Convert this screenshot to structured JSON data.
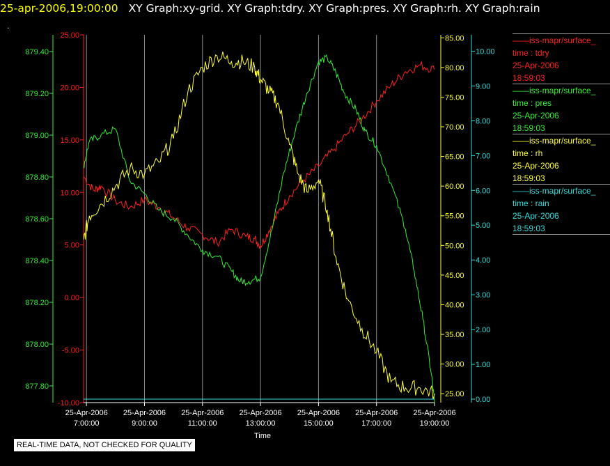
{
  "header": {
    "datetime": "25-apr-2006,19:00:00",
    "graphs": "XY Graph:xy-grid.  XY Graph:tdry.  XY Graph:pres.  XY Graph:rh.  XY Graph:rain"
  },
  "marker": ".",
  "legend": [
    {
      "name": "iss-mapr/surface_",
      "line2": "time : tdry",
      "date": "25-Apr-2006",
      "time": "18:59:03",
      "color": "#ff2020"
    },
    {
      "name": "iss-mapr/surface_",
      "line2": "time : pres",
      "date": "25-Apr-2006",
      "time": "18:59:03",
      "color": "#33ee33"
    },
    {
      "name": "iss-mapr/surface_",
      "line2": "time : rh",
      "date": "25-Apr-2006",
      "time": "18:59:03",
      "color": "#ffff33"
    },
    {
      "name": "iss-mapr/surface_",
      "line2": "time : rain",
      "date": "25-Apr-2006",
      "time": "18:59:03",
      "color": "#33dddd"
    }
  ],
  "quality_notice": "REAL-TIME DATA, NOT CHECKED FOR QUALITY",
  "chart_data": {
    "type": "line",
    "xlabel": "Time",
    "x_ticks": [
      {
        "date": "25-Apr-2006",
        "time": "7:00:00",
        "hour": 7
      },
      {
        "date": "25-Apr-2006",
        "time": "9:00:00",
        "hour": 9
      },
      {
        "date": "25-Apr-2006",
        "time": "11:00:00",
        "hour": 11
      },
      {
        "date": "25-Apr-2006",
        "time": "13:00:00",
        "hour": 13
      },
      {
        "date": "25-Apr-2006",
        "time": "15:00:00",
        "hour": 15
      },
      {
        "date": "25-Apr-2006",
        "time": "17:00:00",
        "hour": 17
      },
      {
        "date": "25-Apr-2006",
        "time": "19:00:00",
        "hour": 19
      }
    ],
    "xlim": [
      6.9,
      19.0
    ],
    "grid": true,
    "axes": [
      {
        "id": "pres",
        "color": "#33ee33",
        "ylim": [
          877.72,
          879.48
        ],
        "ticks": [
          "877.80",
          "878.00",
          "878.20",
          "878.40",
          "878.60",
          "878.80",
          "879.00",
          "879.20",
          "879.40"
        ]
      },
      {
        "id": "tdry",
        "color": "#ff2020",
        "ylim": [
          -10,
          25
        ],
        "ticks": [
          "-10.00",
          "-5.00",
          "0.00",
          "5.00",
          "10.00",
          "15.00",
          "20.00",
          "25.00"
        ]
      },
      {
        "id": "rh",
        "color": "#ffff33",
        "ylim": [
          23.5,
          85.5
        ],
        "ticks": [
          "25.00",
          "30.00",
          "35.00",
          "40.00",
          "45.00",
          "50.00",
          "55.00",
          "60.00",
          "65.00",
          "70.00",
          "75.00",
          "80.00",
          "85.00"
        ]
      },
      {
        "id": "rain",
        "color": "#33dddd",
        "ylim": [
          -0.1,
          10.47
        ],
        "ticks": [
          "0.00",
          "1.00",
          "2.00",
          "3.00",
          "4.00",
          "5.00",
          "6.00",
          "7.00",
          "8.00",
          "9.00",
          "10.00"
        ]
      }
    ],
    "series": [
      {
        "axis": "tdry",
        "color": "#ff2020",
        "x": [
          6.9,
          7.25,
          7.5,
          8.0,
          8.5,
          9.0,
          9.5,
          10.0,
          10.5,
          11.0,
          11.5,
          12.0,
          12.5,
          12.8,
          13.0,
          13.3,
          13.6,
          14.0,
          14.5,
          15.0,
          15.5,
          16.0,
          16.5,
          17.0,
          17.5,
          18.0,
          18.5,
          19.0
        ],
        "y": [
          11.5,
          10.2,
          10.6,
          9.2,
          8.6,
          9.3,
          8.6,
          7.6,
          6.6,
          6.0,
          5.2,
          6.5,
          5.8,
          5.6,
          4.9,
          6.4,
          8.0,
          9.7,
          11.2,
          12.5,
          14.0,
          15.6,
          17.0,
          18.7,
          20.2,
          21.5,
          22.1,
          21.7
        ]
      },
      {
        "axis": "pres",
        "color": "#33ee33",
        "x": [
          6.9,
          7.1,
          7.5,
          8.0,
          8.5,
          9.0,
          9.5,
          10.0,
          10.5,
          11.0,
          11.5,
          12.0,
          12.3,
          12.6,
          13.0,
          13.4,
          13.8,
          14.2,
          14.6,
          15.0,
          15.3,
          15.6,
          15.9,
          16.3,
          16.6,
          17.0,
          17.5,
          18.0,
          18.3,
          18.6,
          18.9,
          19.0
        ],
        "y": [
          878.85,
          878.97,
          879.0,
          879.03,
          878.78,
          878.72,
          878.64,
          878.6,
          878.52,
          878.45,
          878.42,
          878.35,
          878.3,
          878.3,
          878.32,
          878.55,
          878.82,
          879.02,
          879.2,
          879.35,
          879.37,
          879.3,
          879.2,
          879.12,
          879.02,
          878.95,
          878.77,
          878.55,
          878.35,
          878.12,
          877.85,
          877.72
        ]
      },
      {
        "axis": "rh",
        "color": "#ffff33",
        "x": [
          6.9,
          7.1,
          7.5,
          8.0,
          8.5,
          9.0,
          9.5,
          10.0,
          10.5,
          11.0,
          11.5,
          12.0,
          12.4,
          12.8,
          13.0,
          13.3,
          13.6,
          14.0,
          14.3,
          14.6,
          15.0,
          15.3,
          15.6,
          16.0,
          16.5,
          17.0,
          17.5,
          18.0,
          18.5,
          19.0
        ],
        "y": [
          51,
          55,
          57,
          60,
          63,
          62,
          64,
          68,
          76,
          80,
          82,
          81,
          81,
          80,
          78,
          76,
          74,
          67,
          62,
          59,
          61,
          56,
          48,
          41,
          36,
          32,
          27,
          26,
          26,
          25
        ]
      },
      {
        "axis": "rain",
        "color": "#33dddd",
        "x": [
          6.9,
          19.0
        ],
        "y": [
          0.0,
          0.0
        ]
      }
    ]
  }
}
